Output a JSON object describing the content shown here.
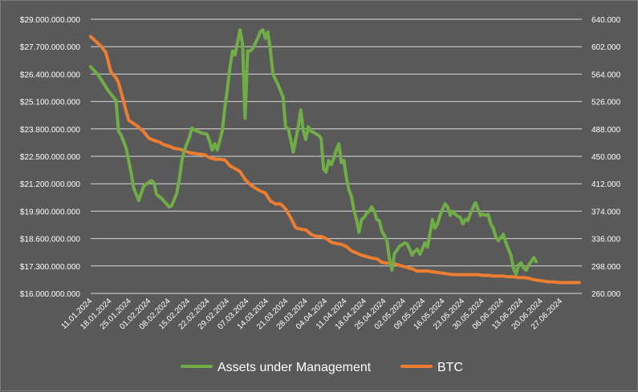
{
  "chart_data": {
    "type": "line",
    "title": "",
    "xlabel": "",
    "ylabel_left": "",
    "ylabel_right": "",
    "left_axis": {
      "min": 16000000000,
      "max": 29000000000,
      "ticks": [
        "$16.000.000.000",
        "$17.300.000.000",
        "$18.600.000.000",
        "$19.900.000.000",
        "$21.200.000.000",
        "$22.500.000.000",
        "$23.800.000.000",
        "$25.100.000.000",
        "$26.400.000.000",
        "$27.700.000.000",
        "$29.000.000.000"
      ]
    },
    "right_axis": {
      "min": 260000,
      "max": 640000,
      "ticks": [
        "260.000",
        "298.000",
        "336.000",
        "374.000",
        "412.000",
        "450.000",
        "488.000",
        "526.000",
        "564.000",
        "602.000",
        "640.000"
      ]
    },
    "x_ticks": [
      "11.01.2024",
      "18.01.2024",
      "25.01.2024",
      "01.02.2024",
      "08.02.2024",
      "15.02.2024",
      "22.02.2024",
      "29.02.2024",
      "07.03.2024",
      "14.03.2024",
      "21.03.2024",
      "28.03.2024",
      "04.04.2024",
      "11.04.2024",
      "18.04.2024",
      "25.04.2024",
      "02.05.2024",
      "09.05.2024",
      "16.05.2024",
      "23.05.2024",
      "30.05.2024",
      "06.06.2024",
      "13.06.2024",
      "20.06.2024",
      "27.06.2024"
    ],
    "x_day_range": [
      0,
      171
    ],
    "series": [
      {
        "name": "Assets under Management",
        "axis": "left",
        "color": "#70ad47",
        "points": [
          [
            0,
            26750000000
          ],
          [
            3,
            26350000000
          ],
          [
            7,
            25600000000
          ],
          [
            10,
            25150000000
          ],
          [
            11,
            23700000000
          ],
          [
            12,
            23500000000
          ],
          [
            14,
            22900000000
          ],
          [
            15,
            22300000000
          ],
          [
            16,
            21700000000
          ],
          [
            17,
            21000000000
          ],
          [
            19,
            20400000000
          ],
          [
            21,
            21100000000
          ],
          [
            24,
            21350000000
          ],
          [
            25,
            21250000000
          ],
          [
            26,
            20700000000
          ],
          [
            28,
            20500000000
          ],
          [
            31,
            20100000000
          ],
          [
            32,
            20150000000
          ],
          [
            34,
            20750000000
          ],
          [
            35,
            21400000000
          ],
          [
            36,
            22300000000
          ],
          [
            37,
            22800000000
          ],
          [
            38,
            23100000000
          ],
          [
            39,
            23400000000
          ],
          [
            40,
            23850000000
          ],
          [
            41,
            23750000000
          ],
          [
            44,
            23600000000
          ],
          [
            46,
            23550000000
          ],
          [
            47,
            23200000000
          ],
          [
            48,
            22800000000
          ],
          [
            49,
            23100000000
          ],
          [
            50,
            22800000000
          ],
          [
            51,
            23250000000
          ],
          [
            52,
            23700000000
          ],
          [
            53,
            24800000000
          ],
          [
            54,
            25700000000
          ],
          [
            55,
            26700000000
          ],
          [
            56,
            27500000000
          ],
          [
            57,
            27300000000
          ],
          [
            58,
            27900000000
          ],
          [
            59,
            28500000000
          ],
          [
            60,
            27800000000
          ],
          [
            61,
            24300000000
          ],
          [
            62,
            27500000000
          ],
          [
            63,
            27500000000
          ],
          [
            64,
            27600000000
          ],
          [
            66,
            28100000000
          ],
          [
            67,
            28400000000
          ],
          [
            68,
            28500000000
          ],
          [
            69,
            28100000000
          ],
          [
            70,
            28400000000
          ],
          [
            71,
            27500000000
          ],
          [
            72,
            26400000000
          ],
          [
            74,
            25900000000
          ],
          [
            76,
            25300000000
          ],
          [
            77,
            23900000000
          ],
          [
            78,
            23800000000
          ],
          [
            79,
            23300000000
          ],
          [
            80,
            22700000000
          ],
          [
            81,
            23300000000
          ],
          [
            82,
            23900000000
          ],
          [
            83,
            24700000000
          ],
          [
            84,
            23700000000
          ],
          [
            85,
            23300000000
          ],
          [
            86,
            23900000000
          ],
          [
            87,
            23700000000
          ],
          [
            90,
            23500000000
          ],
          [
            91,
            23350000000
          ],
          [
            92,
            21900000000
          ],
          [
            93,
            21750000000
          ],
          [
            94,
            22300000000
          ],
          [
            95,
            22100000000
          ],
          [
            96,
            22400000000
          ],
          [
            97,
            22800000000
          ],
          [
            98,
            23100000000
          ],
          [
            99,
            22200000000
          ],
          [
            100,
            22300000000
          ],
          [
            101,
            21500000000
          ],
          [
            102,
            20900000000
          ],
          [
            103,
            20600000000
          ],
          [
            104,
            19950000000
          ],
          [
            105,
            19500000000
          ],
          [
            106,
            18900000000
          ],
          [
            107,
            19500000000
          ],
          [
            108,
            19600000000
          ],
          [
            109,
            19800000000
          ],
          [
            110,
            19900000000
          ],
          [
            111,
            20100000000
          ],
          [
            112,
            19900000000
          ],
          [
            113,
            19500000000
          ],
          [
            114,
            19450000000
          ],
          [
            115,
            18950000000
          ],
          [
            116,
            18750000000
          ],
          [
            117,
            18500000000
          ],
          [
            118,
            17650000000
          ],
          [
            119,
            17100000000
          ],
          [
            120,
            17900000000
          ],
          [
            121,
            18050000000
          ],
          [
            122,
            18250000000
          ],
          [
            123,
            18300000000
          ],
          [
            124,
            18400000000
          ],
          [
            125,
            18350000000
          ],
          [
            126,
            18100000000
          ],
          [
            127,
            17800000000
          ],
          [
            128,
            18000000000
          ],
          [
            129,
            18100000000
          ],
          [
            130,
            17850000000
          ],
          [
            131,
            18100000000
          ],
          [
            132,
            18400000000
          ],
          [
            133,
            18200000000
          ],
          [
            134,
            18800000000
          ],
          [
            135,
            19500000000
          ],
          [
            136,
            19100000000
          ],
          [
            137,
            19300000000
          ],
          [
            138,
            19700000000
          ],
          [
            139,
            20000000000
          ],
          [
            140,
            20250000000
          ],
          [
            141,
            20100000000
          ],
          [
            142,
            19700000000
          ],
          [
            143,
            19900000000
          ],
          [
            144,
            19750000000
          ],
          [
            145,
            19650000000
          ],
          [
            146,
            19600000000
          ],
          [
            147,
            19300000000
          ],
          [
            148,
            19500000000
          ],
          [
            149,
            19450000000
          ],
          [
            150,
            19800000000
          ],
          [
            151,
            20050000000
          ],
          [
            152,
            20300000000
          ],
          [
            153,
            20000000000
          ],
          [
            154,
            19700000000
          ],
          [
            155,
            19750000000
          ],
          [
            156,
            19700000000
          ],
          [
            157,
            19750000000
          ],
          [
            158,
            19300000000
          ],
          [
            159,
            19100000000
          ],
          [
            160,
            18700000000
          ],
          [
            161,
            18500000000
          ],
          [
            162,
            18650000000
          ],
          [
            163,
            18800000000
          ],
          [
            164,
            18400000000
          ],
          [
            165,
            18100000000
          ],
          [
            166,
            17800000000
          ],
          [
            167,
            17200000000
          ],
          [
            168,
            16900000000
          ],
          [
            169,
            17350000000
          ],
          [
            170,
            17450000000
          ],
          [
            171,
            17200000000
          ],
          [
            172,
            17100000000
          ],
          [
            173,
            17350000000
          ],
          [
            174,
            17500000000
          ],
          [
            175,
            17700000000
          ],
          [
            176,
            17500000000
          ]
        ]
      },
      {
        "name": "BTC",
        "axis": "right",
        "color": "#ed7d31",
        "points": [
          [
            0,
            616000
          ],
          [
            4,
            603000
          ],
          [
            6,
            594000
          ],
          [
            8,
            567000
          ],
          [
            10,
            559000
          ],
          [
            11,
            552000
          ],
          [
            12,
            539000
          ],
          [
            13,
            526000
          ],
          [
            15,
            500000
          ],
          [
            18,
            493000
          ],
          [
            21,
            484000
          ],
          [
            23,
            475000
          ],
          [
            25,
            472000
          ],
          [
            27,
            470000
          ],
          [
            29,
            466000
          ],
          [
            31,
            464000
          ],
          [
            33,
            461000
          ],
          [
            35,
            460000
          ],
          [
            37,
            458000
          ],
          [
            39,
            455000
          ],
          [
            41,
            454000
          ],
          [
            43,
            453000
          ],
          [
            45,
            452000
          ],
          [
            47,
            448000
          ],
          [
            49,
            446000
          ],
          [
            51,
            446000
          ],
          [
            53,
            445000
          ],
          [
            55,
            437000
          ],
          [
            57,
            433000
          ],
          [
            59,
            429000
          ],
          [
            61,
            418000
          ],
          [
            63,
            411000
          ],
          [
            65,
            406000
          ],
          [
            67,
            402000
          ],
          [
            69,
            399000
          ],
          [
            71,
            388000
          ],
          [
            73,
            384000
          ],
          [
            75,
            384000
          ],
          [
            77,
            377000
          ],
          [
            79,
            365000
          ],
          [
            81,
            351000
          ],
          [
            83,
            349000
          ],
          [
            85,
            348000
          ],
          [
            87,
            342000
          ],
          [
            89,
            339000
          ],
          [
            91,
            339000
          ],
          [
            93,
            336000
          ],
          [
            95,
            331000
          ],
          [
            97,
            329000
          ],
          [
            99,
            328000
          ],
          [
            101,
            325000
          ],
          [
            103,
            319000
          ],
          [
            105,
            316000
          ],
          [
            107,
            313000
          ],
          [
            109,
            311000
          ],
          [
            111,
            309000
          ],
          [
            113,
            308000
          ],
          [
            115,
            303000
          ],
          [
            117,
            302000
          ],
          [
            119,
            302000
          ],
          [
            121,
            300000
          ],
          [
            123,
            298000
          ],
          [
            125,
            296000
          ],
          [
            127,
            294000
          ],
          [
            129,
            291000
          ],
          [
            131,
            291000
          ],
          [
            133,
            291000
          ],
          [
            135,
            290000
          ],
          [
            137,
            289000
          ],
          [
            139,
            288000
          ],
          [
            141,
            287000
          ],
          [
            143,
            286000
          ],
          [
            145,
            286000
          ],
          [
            147,
            286000
          ],
          [
            149,
            286000
          ],
          [
            151,
            286000
          ],
          [
            153,
            286000
          ],
          [
            155,
            285000
          ],
          [
            157,
            285000
          ],
          [
            159,
            284000
          ],
          [
            161,
            284000
          ],
          [
            163,
            284000
          ],
          [
            165,
            283000
          ],
          [
            167,
            283000
          ],
          [
            169,
            282000
          ],
          [
            171,
            282000
          ],
          [
            173,
            281000
          ],
          [
            175,
            279000
          ],
          [
            177,
            278000
          ],
          [
            179,
            277000
          ],
          [
            181,
            276000
          ],
          [
            183,
            276000
          ],
          [
            185,
            275000
          ],
          [
            187,
            275000
          ],
          [
            189,
            275000
          ],
          [
            191,
            275000
          ],
          [
            193,
            275000
          ]
        ]
      }
    ],
    "legend": {
      "position": "bottom",
      "entries": [
        "Assets under Management",
        "BTC"
      ]
    },
    "grid": true
  }
}
